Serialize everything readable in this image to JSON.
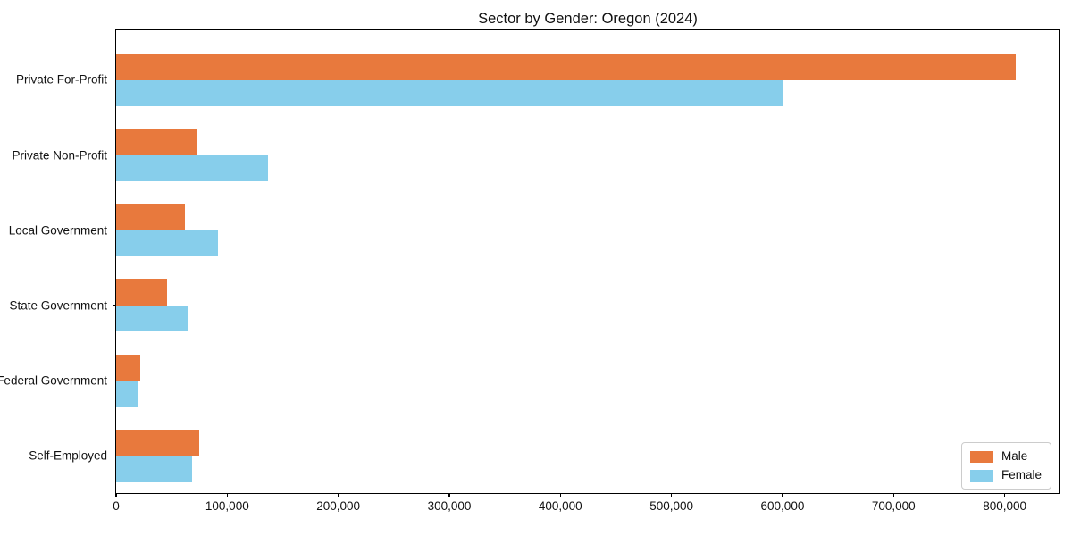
{
  "chart_data": {
    "type": "bar",
    "orientation": "horizontal",
    "title": "Sector by Gender: Oregon (2024)",
    "categories": [
      "Private For-Profit",
      "Private Non-Profit",
      "Local Government",
      "State Government",
      "Federal Government",
      "Self-Employed"
    ],
    "series": [
      {
        "name": "Male",
        "color": "#E8793D",
        "values": [
          810000,
          72000,
          62000,
          46000,
          22000,
          75000
        ]
      },
      {
        "name": "Female",
        "color": "#87CEEB",
        "values": [
          600000,
          137000,
          92000,
          64000,
          19000,
          68000
        ]
      }
    ],
    "xlabel": "",
    "ylabel": "",
    "xlim": [
      0,
      851000
    ],
    "x_ticks": [
      0,
      100000,
      200000,
      300000,
      400000,
      500000,
      600000,
      700000,
      800000
    ],
    "x_tick_labels": [
      "0",
      "100,000",
      "200,000",
      "300,000",
      "400,000",
      "500,000",
      "600,000",
      "700,000",
      "800,000"
    ],
    "grid": false,
    "legend": {
      "position": "lower right"
    },
    "frame_color": "#000000",
    "text_color": "#111111",
    "background_color": "#ffffff"
  }
}
